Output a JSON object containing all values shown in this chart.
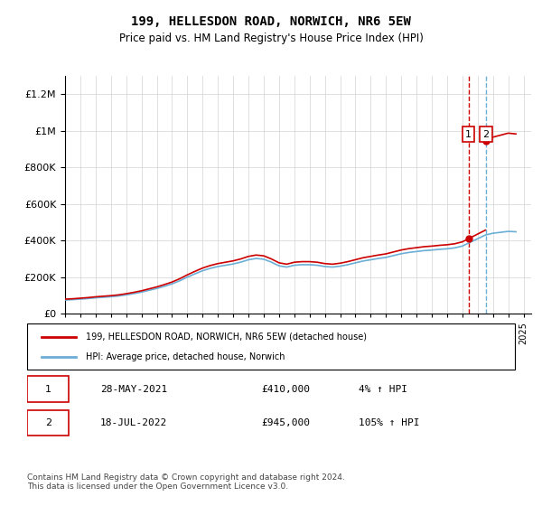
{
  "title": "199, HELLESDON ROAD, NORWICH, NR6 5EW",
  "subtitle": "Price paid vs. HM Land Registry's House Price Index (HPI)",
  "legend_entry1": "199, HELLESDON ROAD, NORWICH, NR6 5EW (detached house)",
  "legend_entry2": "HPI: Average price, detached house, Norwich",
  "annotation1_label": "1",
  "annotation1_date": "28-MAY-2021",
  "annotation1_price": "£410,000",
  "annotation1_hpi": "4% ↑ HPI",
  "annotation2_label": "2",
  "annotation2_date": "18-JUL-2022",
  "annotation2_price": "£945,000",
  "annotation2_hpi": "105% ↑ HPI",
  "footnote": "Contains HM Land Registry data © Crown copyright and database right 2024.\nThis data is licensed under the Open Government Licence v3.0.",
  "hpi_color": "#6baed6",
  "price_color": "#cc0000",
  "vline_color1": "#cc0000",
  "vline_color2": "#6baed6",
  "ylim": [
    0,
    1300000
  ],
  "yticks": [
    0,
    200000,
    400000,
    600000,
    800000,
    1000000,
    1200000
  ],
  "xlim_start": 1995.0,
  "xlim_end": 2025.5,
  "hpi_years": [
    1995.0,
    1995.5,
    1996.0,
    1996.5,
    1997.0,
    1997.5,
    1998.0,
    1998.5,
    1999.0,
    1999.5,
    2000.0,
    2000.5,
    2001.0,
    2001.5,
    2002.0,
    2002.5,
    2003.0,
    2003.5,
    2004.0,
    2004.5,
    2005.0,
    2005.5,
    2006.0,
    2006.5,
    2007.0,
    2007.5,
    2008.0,
    2008.5,
    2009.0,
    2009.5,
    2010.0,
    2010.5,
    2011.0,
    2011.5,
    2012.0,
    2012.5,
    2013.0,
    2013.5,
    2014.0,
    2014.5,
    2015.0,
    2015.5,
    2016.0,
    2016.5,
    2017.0,
    2017.5,
    2018.0,
    2018.5,
    2019.0,
    2019.5,
    2020.0,
    2020.5,
    2021.0,
    2021.5,
    2022.0,
    2022.5,
    2023.0,
    2023.5,
    2024.0,
    2024.5
  ],
  "hpi_values": [
    75000,
    77000,
    80000,
    83000,
    87000,
    90000,
    93000,
    97000,
    103000,
    110000,
    118000,
    128000,
    138000,
    150000,
    163000,
    180000,
    200000,
    218000,
    235000,
    248000,
    258000,
    265000,
    272000,
    282000,
    295000,
    302000,
    298000,
    282000,
    262000,
    255000,
    265000,
    268000,
    268000,
    265000,
    258000,
    255000,
    260000,
    268000,
    278000,
    288000,
    295000,
    302000,
    308000,
    318000,
    328000,
    335000,
    340000,
    345000,
    348000,
    352000,
    355000,
    360000,
    370000,
    390000,
    410000,
    430000,
    440000,
    445000,
    450000,
    448000
  ],
  "sale1_year": 2021.4,
  "sale1_price": 410000,
  "sale2_year": 2022.54,
  "sale2_price": 945000,
  "xtick_years": [
    1995,
    1996,
    1997,
    1998,
    1999,
    2000,
    2001,
    2002,
    2003,
    2004,
    2005,
    2006,
    2007,
    2008,
    2009,
    2010,
    2011,
    2012,
    2013,
    2014,
    2015,
    2016,
    2017,
    2018,
    2019,
    2020,
    2021,
    2022,
    2023,
    2024,
    2025
  ]
}
